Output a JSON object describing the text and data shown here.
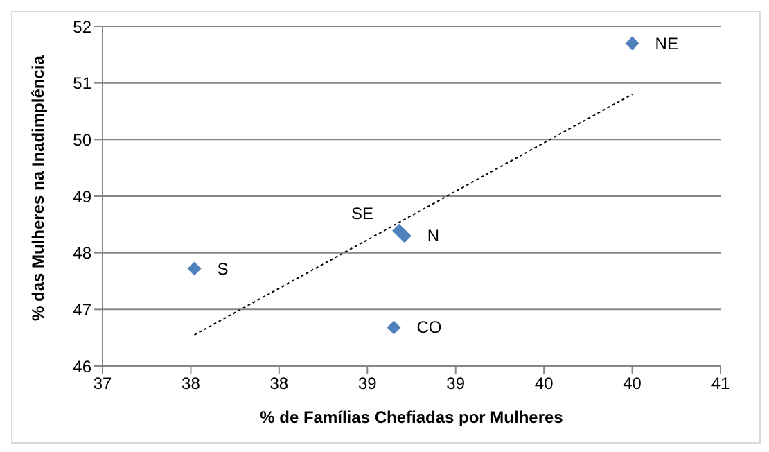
{
  "chart_data": {
    "type": "scatter",
    "xlabel": "% de Famílias Chefiadas por Mulheres",
    "ylabel": "% das Mulheres na Inadimplência",
    "xlim": [
      37,
      40.5
    ],
    "xticks": [
      37,
      {
        "value": 37.5,
        "label": "38"
      },
      38,
      {
        "value": 38.5,
        "label": "39"
      },
      39,
      {
        "value": 39.5,
        "label": "40"
      },
      40,
      {
        "value": 40.5,
        "label": "41"
      }
    ],
    "ylim": [
      46,
      52
    ],
    "yticks": [
      46,
      47,
      48,
      49,
      50,
      51,
      52
    ],
    "grid": "y",
    "legend": false,
    "series": [
      {
        "color": "#4f81bd",
        "marker": "diamond",
        "x": [
          37.52,
          38.68,
          38.71,
          38.65,
          40.0
        ],
        "values": [
          47.72,
          48.39,
          48.3,
          46.68,
          51.7
        ],
        "value_labels": [
          "S",
          "SE",
          "N",
          "CO",
          "NE"
        ]
      },
      {
        "type": "line",
        "color": "#000000",
        "line_style": "dotted",
        "marker": "none",
        "x": [
          37.52,
          40.0
        ],
        "values": [
          46.55,
          50.8
        ]
      }
    ]
  }
}
